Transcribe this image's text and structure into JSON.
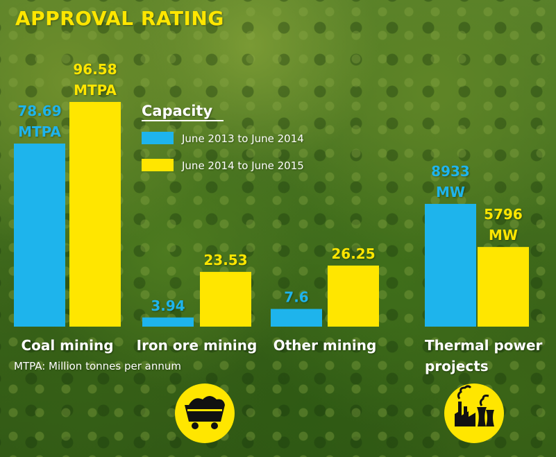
{
  "chart_data": {
    "type": "bar",
    "title": "APPROVAL RATING",
    "legend_title": "Capacity",
    "note": "MTPA: Million tonnes per annum",
    "colors": {
      "series_0": "#1eb4ec",
      "series_1": "#ffe600"
    },
    "legend_position": "top-center",
    "series": [
      {
        "name": "June 2013 to June 2014"
      },
      {
        "name": "June 2014 to June 2015"
      }
    ],
    "groups": [
      {
        "category": "Coal mining",
        "unit": "MTPA",
        "values": [
          78.69,
          96.58
        ],
        "labels": [
          [
            "78.69",
            "MTPA"
          ],
          [
            "96.58",
            "MTPA"
          ]
        ]
      },
      {
        "category": "Iron ore mining",
        "unit": "MTPA",
        "values": [
          3.94,
          23.53
        ],
        "labels": [
          [
            "3.94"
          ],
          [
            "23.53"
          ]
        ]
      },
      {
        "category": "Other mining",
        "unit": "MTPA",
        "values": [
          7.6,
          26.25
        ],
        "labels": [
          [
            "7.6"
          ],
          [
            "26.25"
          ]
        ]
      },
      {
        "category": "Thermal power projects",
        "category_lines": [
          "Thermal power",
          "projects"
        ],
        "unit": "MW",
        "values": [
          8933,
          5796
        ],
        "labels": [
          [
            "8933",
            "MW"
          ],
          [
            "5796",
            "MW"
          ]
        ]
      }
    ],
    "icons": [
      "coal-cart-icon",
      "power-plant-icon"
    ]
  }
}
